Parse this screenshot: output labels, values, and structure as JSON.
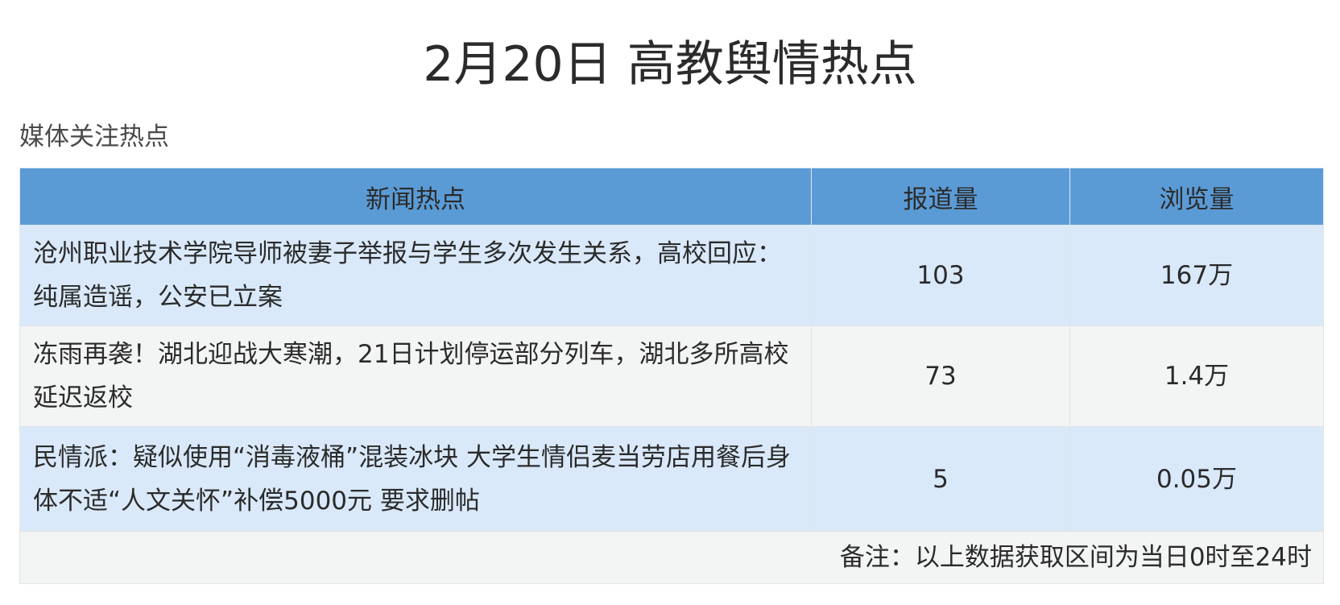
{
  "title": "2月20日 高教舆情热点",
  "section_title": "媒体关注热点",
  "table": {
    "headers": [
      "新闻热点",
      "报道量",
      "浏览量"
    ],
    "rows": [
      {
        "topic": "沧州职业技术学院导师被妻子举报与学生多次发生关系，高校回应：纯属造谣，公安已立案",
        "reports": "103",
        "views": "167万"
      },
      {
        "topic": "冻雨再袭！湖北迎战大寒潮，21日计划停运部分列车，湖北多所高校延迟返校",
        "reports": "73",
        "views": "1.4万"
      },
      {
        "topic": "民情派：疑似使用“消毒液桶”混装冰块 大学生情侣麦当劳店用餐后身体不适“人文关怀”补偿5000元 要求删帖",
        "reports": "5",
        "views": "0.05万"
      }
    ],
    "note": "备注：以上数据获取区间为当日0时至24时"
  },
  "colors": {
    "header": "#5b9bd5",
    "row_blue": "#d9e9fa",
    "row_gray": "#f3f4f4"
  }
}
